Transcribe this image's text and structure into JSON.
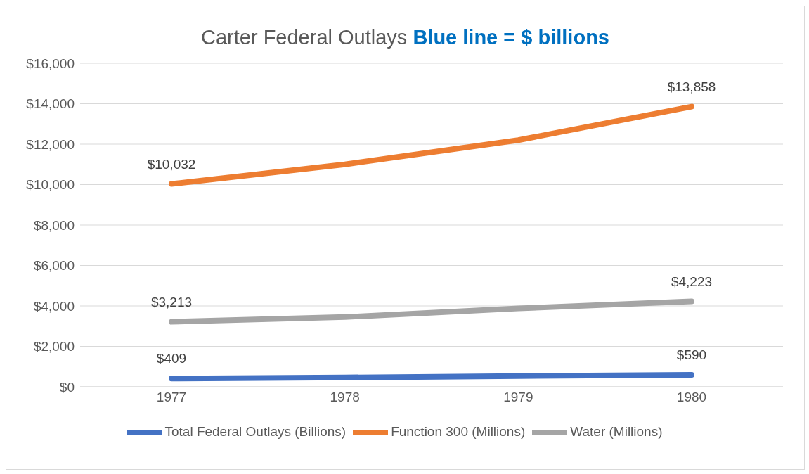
{
  "chart_data": {
    "type": "line",
    "title": "Carter Federal Outlays",
    "subtitle": "Blue line = $ billions",
    "categories": [
      "1977",
      "1978",
      "1979",
      "1980"
    ],
    "series": [
      {
        "name": "Total Federal Outlays (Billions)",
        "color": "#4472c4",
        "values": [
          409,
          460,
          530,
          590
        ],
        "value_labels": [
          "$409",
          null,
          null,
          "$590"
        ]
      },
      {
        "name": "Function 300 (Millions)",
        "color": "#ed7d31",
        "values": [
          10032,
          11000,
          12200,
          13858
        ],
        "value_labels": [
          "$10,032",
          null,
          null,
          "$13,858"
        ]
      },
      {
        "name": "Water (Millions)",
        "color": "#a5a5a5",
        "values": [
          3213,
          3450,
          3880,
          4223
        ],
        "value_labels": [
          "$3,213",
          null,
          null,
          "$4,223"
        ]
      }
    ],
    "ylim": [
      0,
      16000
    ],
    "yticks": [
      {
        "value": 0,
        "label": "$0"
      },
      {
        "value": 2000,
        "label": "$2,000"
      },
      {
        "value": 4000,
        "label": "$4,000"
      },
      {
        "value": 6000,
        "label": "$6,000"
      },
      {
        "value": 8000,
        "label": "$8,000"
      },
      {
        "value": 10000,
        "label": "$10,000"
      },
      {
        "value": 12000,
        "label": "$12,000"
      },
      {
        "value": 14000,
        "label": "$14,000"
      },
      {
        "value": 16000,
        "label": "$16,000"
      }
    ],
    "grid": "y",
    "legend": "bottom",
    "marker": "none",
    "line_style": "solid"
  }
}
